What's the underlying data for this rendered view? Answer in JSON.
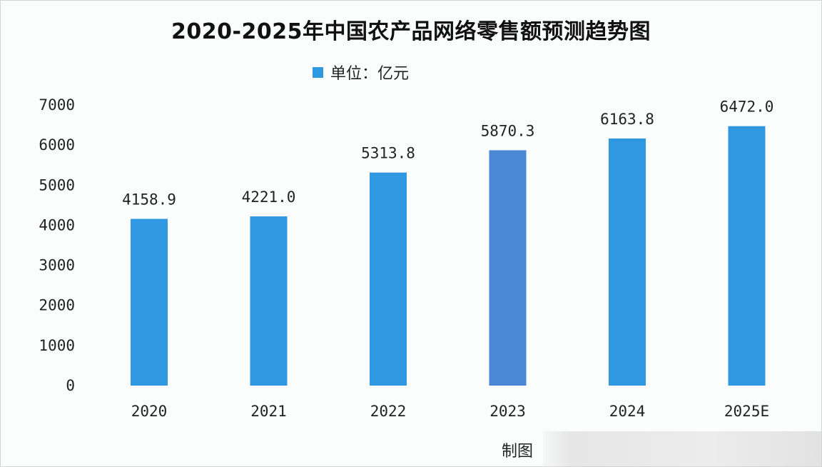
{
  "chart_data": {
    "type": "bar",
    "title": "2020-2025年中国农产品网络零售额预测趋势图",
    "legend": {
      "label": "单位：亿元",
      "placement": "top-left"
    },
    "categories": [
      "2020",
      "2021",
      "2022",
      "2023",
      "2024",
      "2025E"
    ],
    "series": [
      {
        "values": [
          4158.9,
          4221.0,
          5313.8,
          5870.3,
          6163.8,
          6472.0
        ]
      }
    ],
    "value_labels": [
      "4158.9",
      "4221.0",
      "5313.8",
      "5870.3",
      "6163.8",
      "6472.0"
    ],
    "yticks": [
      "0",
      "1000",
      "2000",
      "3000",
      "4000",
      "5000",
      "6000",
      "7000"
    ],
    "ylim": [
      0,
      7000
    ],
    "grid": false,
    "colors": {
      "bar": "#2f98e0",
      "bar_highlight": "#4a88d6"
    }
  },
  "footer": {
    "label": "制图"
  }
}
